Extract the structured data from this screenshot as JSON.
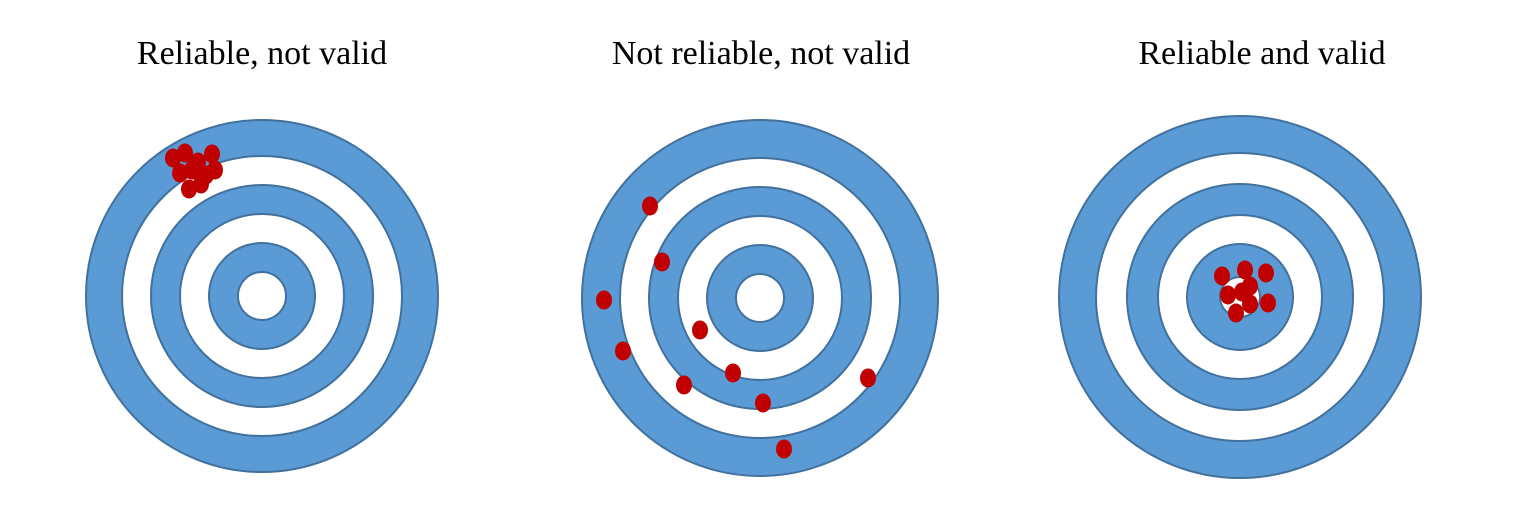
{
  "colors": {
    "ring_fill": "#5B9BD5",
    "ring_stroke": "#41719C",
    "background": "#FFFFFF",
    "shot_fill": "#C00000"
  },
  "targets": [
    {
      "title": "Reliable, not valid",
      "shot_count": 10,
      "pattern": "tight cluster, upper-left of outer rings"
    },
    {
      "title": "Not reliable, not valid",
      "shot_count": 10,
      "pattern": "scattered across rings"
    },
    {
      "title": "Reliable and valid",
      "shot_count": 9,
      "pattern": "tight cluster around bullseye"
    }
  ]
}
